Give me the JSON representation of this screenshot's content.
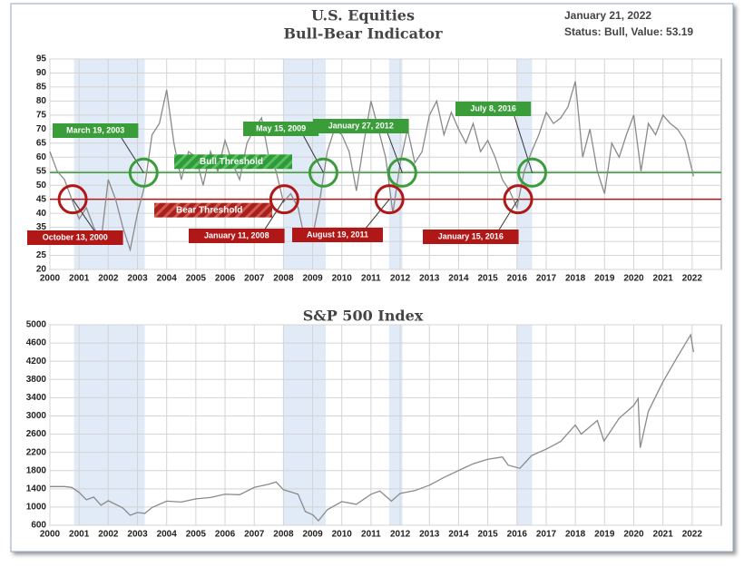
{
  "chart_data": [
    {
      "type": "line",
      "title": "U.S. Equities",
      "subtitle": "Bull-Bear Indicator",
      "date": "January 21, 2022",
      "status": "Status: Bull, Value: 53.19",
      "color": "#8a8a8a",
      "x": [
        2000.0,
        2000.25,
        2000.5,
        2000.75,
        2001.0,
        2001.25,
        2001.5,
        2001.75,
        2002.0,
        2002.25,
        2002.5,
        2002.75,
        2003.0,
        2003.25,
        2003.5,
        2003.75,
        2004.0,
        2004.25,
        2004.5,
        2004.75,
        2005.0,
        2005.25,
        2005.5,
        2005.75,
        2006.0,
        2006.25,
        2006.5,
        2006.75,
        2007.0,
        2007.25,
        2007.5,
        2007.75,
        2008.0,
        2008.25,
        2008.5,
        2008.75,
        2009.0,
        2009.25,
        2009.5,
        2009.75,
        2010.0,
        2010.25,
        2010.5,
        2010.75,
        2011.0,
        2011.25,
        2011.5,
        2011.75,
        2012.0,
        2012.25,
        2012.5,
        2012.75,
        2013.0,
        2013.25,
        2013.5,
        2013.75,
        2014.0,
        2014.25,
        2014.5,
        2014.75,
        2015.0,
        2015.25,
        2015.5,
        2015.75,
        2016.0,
        2016.25,
        2016.5,
        2016.75,
        2017.0,
        2017.25,
        2017.5,
        2017.75,
        2018.0,
        2018.25,
        2018.5,
        2018.75,
        2019.0,
        2019.25,
        2019.5,
        2019.75,
        2020.0,
        2020.25,
        2020.5,
        2020.75,
        2021.0,
        2021.25,
        2021.5,
        2021.75,
        2022.05
      ],
      "values": [
        62,
        55,
        52,
        45,
        38,
        42,
        35,
        30,
        52,
        45,
        35,
        27,
        40,
        50,
        68,
        72,
        84,
        65,
        52,
        62,
        60,
        50,
        62,
        55,
        66,
        58,
        52,
        65,
        70,
        74,
        60,
        55,
        44,
        47,
        42,
        30,
        32,
        45,
        62,
        70,
        68,
        62,
        48,
        65,
        80,
        70,
        60,
        40,
        58,
        70,
        58,
        62,
        75,
        80,
        68,
        76,
        70,
        65,
        72,
        62,
        66,
        60,
        52,
        48,
        42,
        55,
        62,
        68,
        76,
        72,
        74,
        78,
        87,
        60,
        70,
        55,
        47,
        65,
        60,
        68,
        75,
        55,
        72,
        68,
        75,
        72,
        70,
        66,
        53.19
      ],
      "shaded": [
        [
          2000.83,
          2003.25
        ],
        [
          2008.0,
          2009.45
        ],
        [
          2011.62,
          2012.08
        ],
        [
          2016.0,
          2016.52
        ]
      ],
      "thresholds": [
        {
          "label": "Bull Threshold",
          "value": 54.5,
          "color": "#3a9d3a"
        },
        {
          "label": "Bear Threshold",
          "value": 45,
          "color": "#b01818"
        }
      ],
      "annotations": [
        {
          "label": "October 13, 2000",
          "x": 2000.78,
          "y": 45,
          "color": "#b01818"
        },
        {
          "label": "March 19, 2003",
          "x": 2003.21,
          "y": 54.5,
          "color": "#3a9d3a"
        },
        {
          "label": "January 11, 2008",
          "x": 2008.03,
          "y": 45,
          "color": "#b01818"
        },
        {
          "label": "May 15, 2009",
          "x": 2009.37,
          "y": 54.5,
          "color": "#3a9d3a"
        },
        {
          "label": "August 19, 2011",
          "x": 2011.63,
          "y": 45,
          "color": "#b01818"
        },
        {
          "label": "January 27, 2012",
          "x": 2012.07,
          "y": 54.5,
          "color": "#3a9d3a"
        },
        {
          "label": "January 15, 2016",
          "x": 2016.04,
          "y": 45,
          "color": "#b01818"
        },
        {
          "label": "July 8, 2016",
          "x": 2016.52,
          "y": 54.5,
          "color": "#3a9d3a"
        }
      ],
      "xlim": [
        2000,
        2023
      ],
      "xticks": [
        2000,
        2001,
        2002,
        2003,
        2004,
        2005,
        2006,
        2007,
        2008,
        2009,
        2010,
        2011,
        2012,
        2013,
        2014,
        2015,
        2016,
        2017,
        2018,
        2019,
        2020,
        2021,
        2022
      ],
      "ylim": [
        20,
        95
      ],
      "yticks": [
        20,
        25,
        30,
        35,
        40,
        45,
        50,
        55,
        60,
        65,
        70,
        75,
        80,
        85,
        90,
        95
      ],
      "grid": true
    },
    {
      "type": "line",
      "title": "S&P 500 Index",
      "color": "#8a8a8a",
      "x": [
        2000.0,
        2000.5,
        2000.75,
        2001.0,
        2001.25,
        2001.5,
        2001.75,
        2002.0,
        2002.5,
        2002.75,
        2003.0,
        2003.25,
        2003.5,
        2004.0,
        2004.5,
        2005.0,
        2005.5,
        2006.0,
        2006.5,
        2007.0,
        2007.5,
        2007.75,
        2008.0,
        2008.5,
        2008.75,
        2009.0,
        2009.2,
        2009.5,
        2010.0,
        2010.5,
        2011.0,
        2011.3,
        2011.7,
        2012.0,
        2012.5,
        2013.0,
        2013.5,
        2014.0,
        2014.5,
        2015.0,
        2015.5,
        2015.7,
        2016.1,
        2016.5,
        2017.0,
        2017.5,
        2018.0,
        2018.2,
        2018.75,
        2018.98,
        2019.5,
        2020.0,
        2020.15,
        2020.22,
        2020.5,
        2021.0,
        2021.5,
        2021.95,
        2022.05
      ],
      "values": [
        1450,
        1450,
        1430,
        1320,
        1160,
        1220,
        1040,
        1140,
        980,
        820,
        880,
        860,
        990,
        1130,
        1110,
        1180,
        1210,
        1280,
        1270,
        1430,
        1500,
        1550,
        1380,
        1280,
        900,
        830,
        700,
        940,
        1120,
        1060,
        1280,
        1350,
        1130,
        1300,
        1360,
        1480,
        1650,
        1800,
        1950,
        2050,
        2100,
        1920,
        1850,
        2130,
        2270,
        2440,
        2800,
        2600,
        2900,
        2450,
        2950,
        3230,
        3380,
        2300,
        3100,
        3750,
        4300,
        4780,
        4400
      ],
      "shaded": [
        [
          2000.83,
          2003.25
        ],
        [
          2008.0,
          2009.45
        ],
        [
          2011.62,
          2012.08
        ],
        [
          2016.0,
          2016.52
        ]
      ],
      "xlim": [
        2000,
        2023
      ],
      "xticks": [
        2000,
        2001,
        2002,
        2003,
        2004,
        2005,
        2006,
        2007,
        2008,
        2009,
        2010,
        2011,
        2012,
        2013,
        2014,
        2015,
        2016,
        2017,
        2018,
        2019,
        2020,
        2021,
        2022
      ],
      "ylim": [
        600,
        5000
      ],
      "yticks": [
        600,
        1000,
        1400,
        1800,
        2200,
        2600,
        3000,
        3400,
        3800,
        4200,
        4600,
        5000
      ],
      "grid": true
    }
  ]
}
